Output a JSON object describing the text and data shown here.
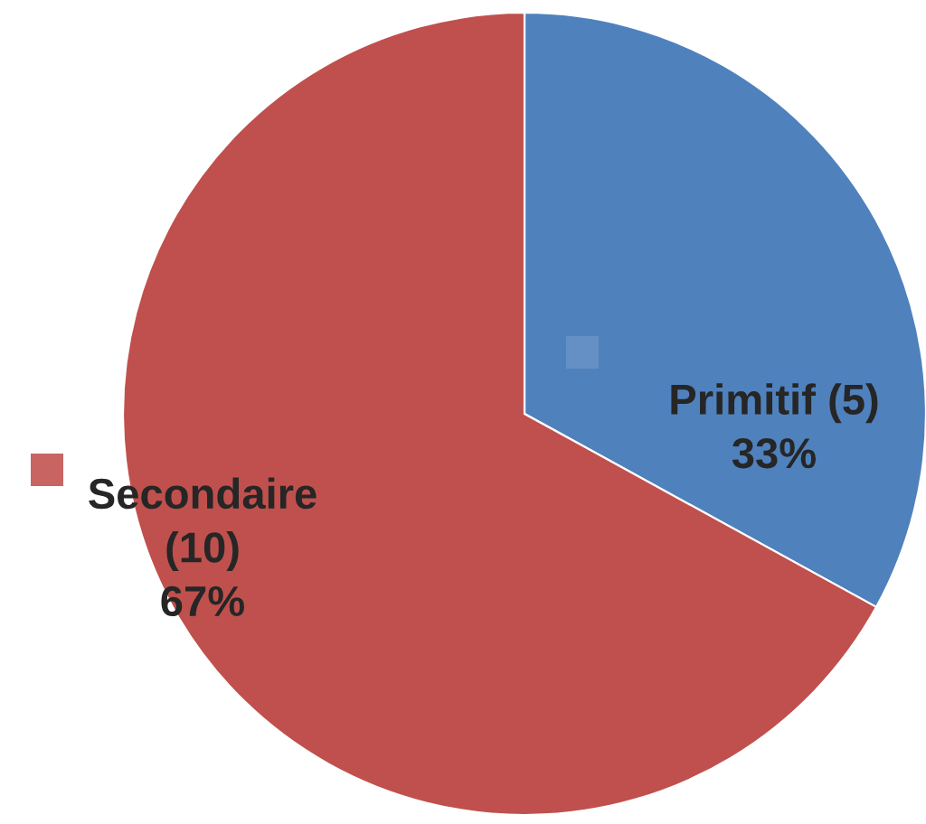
{
  "chart_data": {
    "type": "pie",
    "categories": [
      "Primitif (5)",
      "Secondaire\n(10)"
    ],
    "values": [
      33,
      67
    ],
    "colors": [
      "#4f81bd",
      "#c0504d"
    ],
    "value_labels": [
      "33%",
      "67%"
    ],
    "legend": false
  }
}
